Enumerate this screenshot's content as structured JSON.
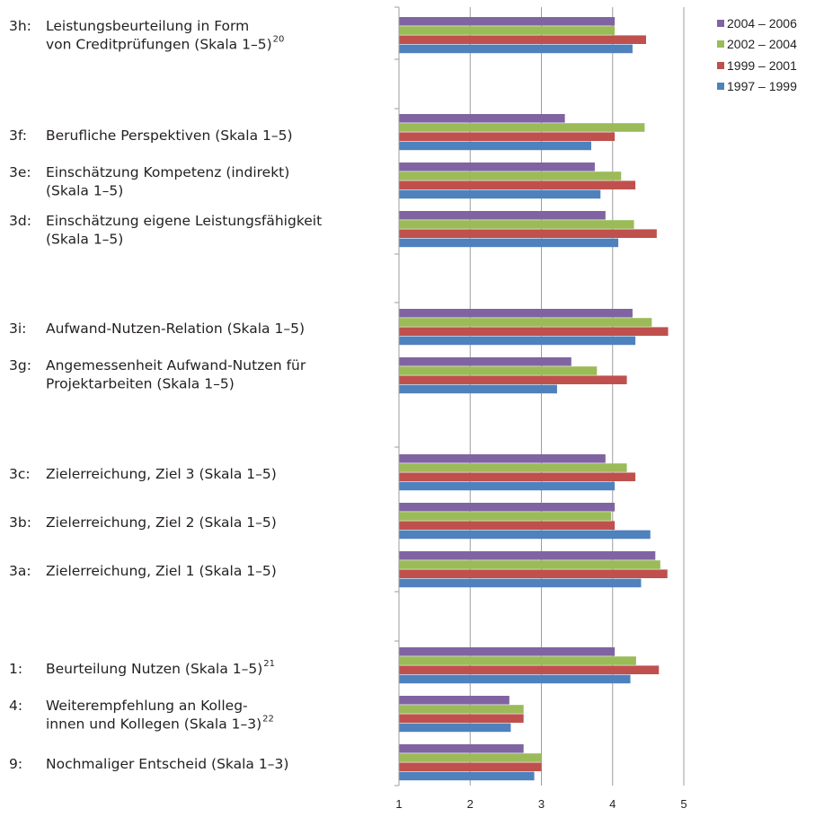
{
  "chart_data": {
    "type": "bar",
    "orientation": "horizontal",
    "xlim": [
      1,
      5
    ],
    "x_ticks": [
      "1",
      "2",
      "3",
      "4",
      "5"
    ],
    "grid": true,
    "legend_position": "top-right",
    "categories": [
      {
        "id": "3h",
        "label_lines": [
          "3h:",
          "Leistungsbeurteilung in Form",
          "von Creditprüfungen (Skala 1–5)"
        ],
        "footnote": "20"
      },
      {
        "id": "3f",
        "label_lines": [
          "3f:",
          "Berufliche Perspektiven (Skala 1–5)"
        ],
        "footnote": ""
      },
      {
        "id": "3e",
        "label_lines": [
          "3e:",
          "Einschätzung Kompetenz (indirekt)",
          "(Skala 1–5)"
        ],
        "footnote": ""
      },
      {
        "id": "3d",
        "label_lines": [
          "3d:",
          "Einschätzung eigene Leistungsfähigkeit",
          "(Skala 1–5)"
        ],
        "footnote": ""
      },
      {
        "id": "3i",
        "label_lines": [
          "3i:",
          "Aufwand-Nutzen-Relation (Skala 1–5)"
        ],
        "footnote": ""
      },
      {
        "id": "3g",
        "label_lines": [
          "3g:",
          "Angemessenheit Aufwand-Nutzen für",
          "Projektarbeiten (Skala 1–5)"
        ],
        "footnote": ""
      },
      {
        "id": "3c",
        "label_lines": [
          "3c:",
          "Zielerreichung, Ziel 3 (Skala 1–5)"
        ],
        "footnote": ""
      },
      {
        "id": "3b",
        "label_lines": [
          "3b:",
          "Zielerreichung, Ziel 2 (Skala 1–5)"
        ],
        "footnote": ""
      },
      {
        "id": "3a",
        "label_lines": [
          "3a:",
          "Zielerreichung, Ziel 1 (Skala 1–5)"
        ],
        "footnote": ""
      },
      {
        "id": "1",
        "label_lines": [
          "1:",
          "Beurteilung Nutzen (Skala 1–5)"
        ],
        "footnote": "21"
      },
      {
        "id": "4",
        "label_lines": [
          "4:",
          "Weiterempfehlung an Kolleg-",
          "innen und Kollegen (Skala 1–3)"
        ],
        "footnote": "22"
      },
      {
        "id": "9",
        "label_lines": [
          "9:",
          "Nochmaliger Entscheid (Skala 1–3)"
        ],
        "footnote": ""
      }
    ],
    "series": [
      {
        "name": "2004 – 2006",
        "color": "#8064a2",
        "values": [
          4.03,
          3.33,
          3.75,
          3.9,
          4.28,
          3.42,
          3.9,
          4.03,
          4.6,
          4.03,
          2.55,
          2.75
        ]
      },
      {
        "name": "2002 – 2004",
        "color": "#9bbb59",
        "values": [
          4.03,
          4.45,
          4.12,
          4.3,
          4.55,
          3.78,
          4.2,
          3.98,
          4.67,
          4.33,
          2.75,
          3.0
        ]
      },
      {
        "name": "1999 – 2001",
        "color": "#c0504d",
        "values": [
          4.47,
          4.03,
          4.32,
          4.62,
          4.78,
          4.2,
          4.32,
          4.03,
          4.77,
          4.65,
          2.75,
          3.0
        ]
      },
      {
        "name": "1997 – 1999",
        "color": "#4f81bd",
        "values": [
          4.28,
          3.7,
          3.83,
          4.08,
          4.32,
          3.22,
          4.03,
          4.53,
          4.4,
          4.25,
          2.57,
          2.9
        ]
      }
    ]
  }
}
